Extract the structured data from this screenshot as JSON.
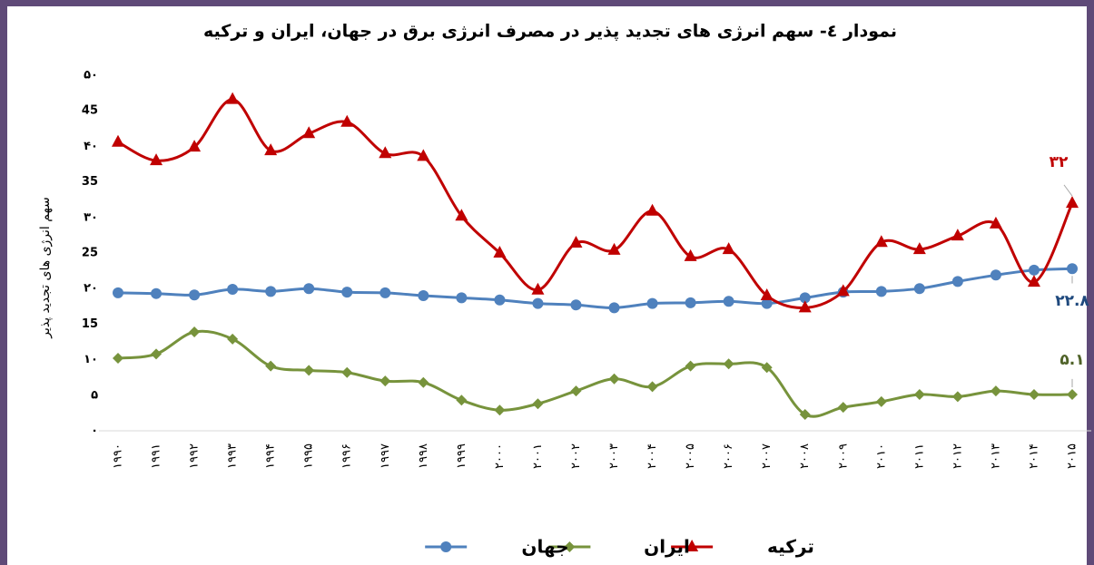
{
  "chart_data": {
    "type": "line",
    "title": "نمودار ٤- سهم انرژی های تجدید پذیر در مصرف انرژی برق در جهان، ایران و ترکیه",
    "y_label": "سهم انرژی های تجدید پذیر",
    "categories": [
      "۱۹۹۰",
      "۱۹۹۱",
      "۱۹۹۲",
      "۱۹۹۳",
      "۱۹۹۴",
      "۱۹۹۵",
      "۱۹۹۶",
      "۱۹۹۷",
      "۱۹۹۸",
      "۱۹۹۹",
      "۲۰۰۰",
      "۲۰۰۱",
      "۲۰۰۲",
      "۲۰۰۳",
      "۲۰۰۴",
      "۲۰۰۵",
      "۲۰۰۶",
      "۲۰۰۷",
      "۲۰۰۸",
      "۲۰۰۹",
      "۲۰۱۰",
      "۲۰۱۱",
      "۲۰۱۲",
      "۲۰۱۳",
      "۲۰۱۴",
      "۲۰۱۵"
    ],
    "ylim": [
      0,
      50
    ],
    "yticks": [
      {
        "value": 0,
        "label": "۰"
      },
      {
        "value": 5,
        "label": "۵"
      },
      {
        "value": 10,
        "label": "۱۰"
      },
      {
        "value": 15,
        "label": "15"
      },
      {
        "value": 20,
        "label": "۲۰"
      },
      {
        "value": 25,
        "label": "25"
      },
      {
        "value": 30,
        "label": "۳۰"
      },
      {
        "value": 35,
        "label": "35"
      },
      {
        "value": 40,
        "label": "۴۰"
      },
      {
        "value": 45,
        "label": "45"
      },
      {
        "value": 50,
        "label": "۵۰"
      }
    ],
    "series": [
      {
        "name": "ترکیه",
        "color": "#c00000",
        "marker": "triangle",
        "values": [
          40.6,
          38.0,
          39.9,
          46.6,
          39.4,
          41.8,
          43.4,
          39.0,
          38.6,
          30.2,
          25.0,
          19.8,
          26.4,
          25.4,
          30.9,
          24.5,
          25.5,
          19.0,
          17.3,
          19.6,
          26.5,
          25.5,
          27.4,
          29.1,
          20.9,
          32.0
        ],
        "value_labels": [
          null,
          null,
          null,
          null,
          null,
          null,
          null,
          null,
          null,
          null,
          null,
          null,
          null,
          null,
          null,
          null,
          null,
          null,
          null,
          null,
          null,
          null,
          null,
          null,
          null,
          "۳۲"
        ]
      },
      {
        "name": "ایران",
        "color": "#77933c",
        "marker": "diamond",
        "values": [
          10.2,
          10.8,
          13.9,
          12.9,
          9.1,
          8.5,
          8.2,
          7.0,
          6.8,
          4.3,
          2.9,
          3.8,
          5.6,
          7.3,
          6.2,
          9.1,
          9.4,
          8.9,
          2.3,
          3.3,
          4.1,
          5.1,
          4.8,
          5.6,
          5.1,
          5.1
        ],
        "value_labels": [
          null,
          null,
          null,
          null,
          null,
          null,
          null,
          null,
          null,
          null,
          null,
          null,
          null,
          null,
          null,
          null,
          null,
          null,
          null,
          null,
          null,
          null,
          null,
          null,
          null,
          "۵.۱"
        ]
      },
      {
        "name": "جهان",
        "color": "#4f81bd",
        "marker": "circle",
        "values": [
          19.4,
          19.3,
          19.1,
          19.9,
          19.6,
          20.0,
          19.5,
          19.4,
          19.0,
          18.7,
          18.4,
          17.9,
          17.7,
          17.3,
          17.9,
          18.0,
          18.2,
          17.9,
          18.7,
          19.5,
          19.6,
          20.0,
          21.0,
          21.9,
          22.6,
          22.8
        ],
        "value_labels": [
          null,
          null,
          null,
          null,
          null,
          null,
          null,
          null,
          null,
          null,
          null,
          null,
          null,
          null,
          null,
          null,
          null,
          null,
          null,
          null,
          null,
          null,
          null,
          null,
          null,
          "۲۲.۸"
        ]
      }
    ]
  }
}
